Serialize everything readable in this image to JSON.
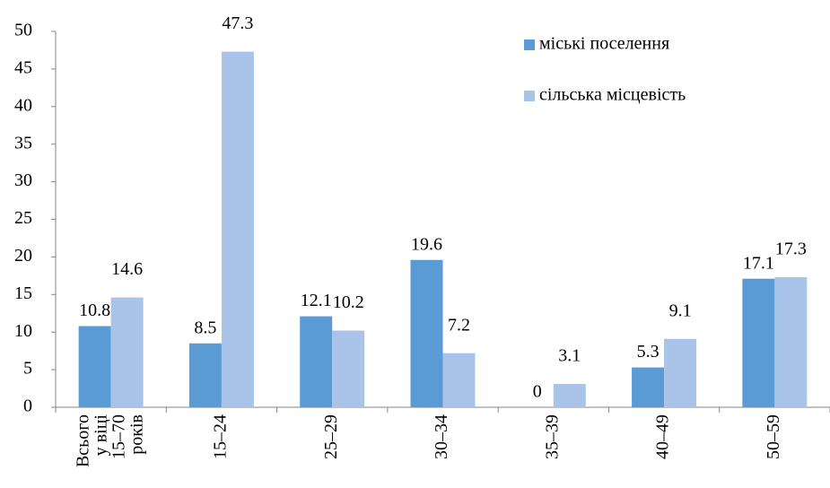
{
  "chart_data": {
    "type": "bar",
    "categories": [
      [
        "Всього",
        "у віці",
        "15–70",
        "років"
      ],
      "15–24",
      "25–29",
      "30–34",
      "35–39",
      "40–49",
      "50–59"
    ],
    "series": [
      {
        "name": "міські поселення",
        "color": "#5b9bd5",
        "values": [
          10.8,
          8.5,
          12.1,
          19.6,
          0,
          5.3,
          17.1
        ]
      },
      {
        "name": "сільська місцевість",
        "color": "#a9c4e8",
        "values": [
          14.6,
          47.3,
          10.2,
          7.2,
          3.1,
          9.1,
          17.3
        ]
      }
    ],
    "ylim": [
      0,
      50
    ],
    "yticks": [
      0,
      5,
      10,
      15,
      20,
      25,
      30,
      35,
      40,
      45,
      50
    ],
    "grid": false,
    "legend": "upper right"
  }
}
